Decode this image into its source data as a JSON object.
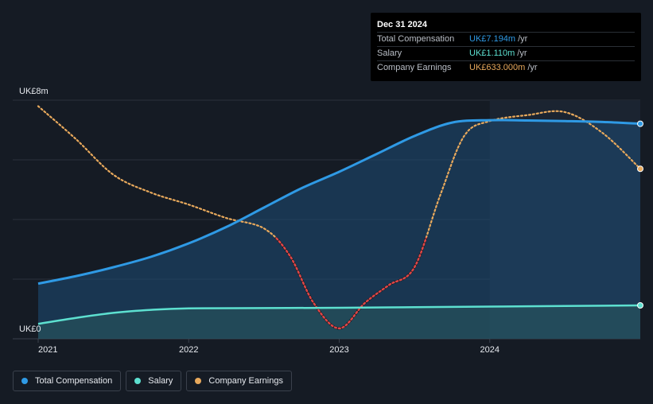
{
  "tooltip": {
    "date": "Dec 31 2024",
    "rows": [
      {
        "label": "Total Compensation",
        "value": "UK£7.194m",
        "unit": "/yr",
        "color": "#2f9ae5"
      },
      {
        "label": "Salary",
        "value": "UK£1.110m",
        "unit": "/yr",
        "color": "#5de0d0"
      },
      {
        "label": "Company Earnings",
        "value": "UK£633.000m",
        "unit": "/yr",
        "color": "#e8a95c"
      }
    ]
  },
  "legend": [
    {
      "label": "Total Compensation",
      "color": "#2f9ae5"
    },
    {
      "label": "Salary",
      "color": "#5de0d0"
    },
    {
      "label": "Company Earnings",
      "color": "#e8a95c"
    }
  ],
  "chart_data": {
    "type": "line",
    "y_axis_labels": [
      "UK£8m",
      "UK£0"
    ],
    "ylim": [
      0,
      8
    ],
    "xlim": [
      2021.0,
      2025.0
    ],
    "x_tick_labels": [
      "2021",
      "2022",
      "2023",
      "2024"
    ],
    "x_ticks": [
      2021,
      2022,
      2023,
      2024
    ],
    "highlight_from": 2024.0,
    "grid": true,
    "legend_position": "bottom-left",
    "series": [
      {
        "name": "Total Compensation",
        "color": "#2f9ae5",
        "x": [
          2021.0,
          2021.25,
          2021.5,
          2021.75,
          2022.0,
          2022.25,
          2022.5,
          2022.75,
          2023.0,
          2023.25,
          2023.5,
          2023.75,
          2024.0,
          2024.25,
          2024.5,
          2024.75,
          2025.0
        ],
        "y": [
          1.85,
          2.1,
          2.4,
          2.75,
          3.2,
          3.75,
          4.4,
          5.05,
          5.6,
          6.2,
          6.8,
          7.25,
          7.33,
          7.32,
          7.3,
          7.27,
          7.21
        ]
      },
      {
        "name": "Salary",
        "color": "#5de0d0",
        "x": [
          2021.0,
          2021.25,
          2021.5,
          2021.75,
          2022.0,
          2022.5,
          2023.0,
          2023.5,
          2024.0,
          2024.5,
          2025.0
        ],
        "y": [
          0.5,
          0.7,
          0.87,
          0.97,
          1.02,
          1.03,
          1.04,
          1.06,
          1.08,
          1.1,
          1.12
        ]
      },
      {
        "name": "Company Earnings",
        "color": "#e8a95c",
        "negative_color": "#e04646",
        "x": [
          2021.0,
          2021.25,
          2021.5,
          2021.75,
          2022.0,
          2022.25,
          2022.5,
          2022.67,
          2022.83,
          2023.0,
          2023.17,
          2023.33,
          2023.5,
          2023.67,
          2023.83,
          2024.0,
          2024.25,
          2024.5,
          2024.75,
          2025.0
        ],
        "y": [
          7.8,
          6.7,
          5.5,
          4.9,
          4.5,
          4.05,
          3.7,
          2.8,
          1.2,
          0.35,
          1.2,
          1.8,
          2.4,
          4.8,
          6.8,
          7.3,
          7.5,
          7.6,
          6.9,
          5.7
        ]
      }
    ]
  }
}
